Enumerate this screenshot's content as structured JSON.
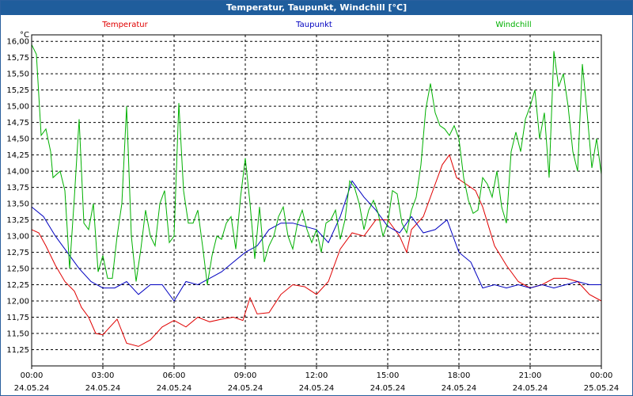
{
  "window": {
    "title": "Temperatur, Taupunkt, Windchill [°C]"
  },
  "chart_data": {
    "type": "line",
    "title": "Temperatur, Taupunkt, Windchill [°C]",
    "yunit": "°C",
    "ylim": [
      11.0,
      16.1
    ],
    "yticks": [
      "16,00",
      "15,75",
      "15,50",
      "15,25",
      "15,00",
      "14,75",
      "14,50",
      "14,25",
      "14,00",
      "13,75",
      "13,50",
      "13,25",
      "13,00",
      "12,75",
      "12,50",
      "12,25",
      "12,00",
      "11,75",
      "11,50",
      "11,25"
    ],
    "xlim": [
      0,
      24
    ],
    "xticks": [
      {
        "time": "00:00",
        "date": "24.05.24"
      },
      {
        "time": "03:00",
        "date": "24.05.24"
      },
      {
        "time": "06:00",
        "date": "24.05.24"
      },
      {
        "time": "09:00",
        "date": "24.05.24"
      },
      {
        "time": "12:00",
        "date": "24.05.24"
      },
      {
        "time": "15:00",
        "date": "24.05.24"
      },
      {
        "time": "18:00",
        "date": "24.05.24"
      },
      {
        "time": "21:00",
        "date": "24.05.24"
      },
      {
        "time": "00:00",
        "date": "25.05.24"
      }
    ],
    "grid": true,
    "colors": {
      "temperature": "#e00000",
      "dewpoint": "#0000c0",
      "windchill": "#00b000",
      "axis": "#000000",
      "title_bg": "#1f5d9c"
    },
    "series": [
      {
        "name": "Temperatur",
        "key": "temperature",
        "points": [
          [
            0,
            13.1
          ],
          [
            0.3,
            13.05
          ],
          [
            0.6,
            12.85
          ],
          [
            1.0,
            12.55
          ],
          [
            1.4,
            12.3
          ],
          [
            1.8,
            12.15
          ],
          [
            2.1,
            11.9
          ],
          [
            2.4,
            11.75
          ],
          [
            2.7,
            11.5
          ],
          [
            3.0,
            11.48
          ],
          [
            3.3,
            11.6
          ],
          [
            3.6,
            11.72
          ],
          [
            4.0,
            11.35
          ],
          [
            4.5,
            11.3
          ],
          [
            5.0,
            11.4
          ],
          [
            5.5,
            11.6
          ],
          [
            6.0,
            11.7
          ],
          [
            6.5,
            11.6
          ],
          [
            7.0,
            11.75
          ],
          [
            7.5,
            11.68
          ],
          [
            8.0,
            11.72
          ],
          [
            8.5,
            11.75
          ],
          [
            8.9,
            11.7
          ],
          [
            9.2,
            12.05
          ],
          [
            9.5,
            11.8
          ],
          [
            10.0,
            11.82
          ],
          [
            10.5,
            12.1
          ],
          [
            11.0,
            12.25
          ],
          [
            11.5,
            12.22
          ],
          [
            12.0,
            12.1
          ],
          [
            12.5,
            12.3
          ],
          [
            13.0,
            12.8
          ],
          [
            13.5,
            13.05
          ],
          [
            14.0,
            13.0
          ],
          [
            14.5,
            13.25
          ],
          [
            15.0,
            13.25
          ],
          [
            15.5,
            13.0
          ],
          [
            15.8,
            12.75
          ],
          [
            16.0,
            13.1
          ],
          [
            16.5,
            13.3
          ],
          [
            17.0,
            13.8
          ],
          [
            17.3,
            14.1
          ],
          [
            17.6,
            14.25
          ],
          [
            17.9,
            13.9
          ],
          [
            18.3,
            13.8
          ],
          [
            18.7,
            13.7
          ],
          [
            19.0,
            13.45
          ],
          [
            19.5,
            12.85
          ],
          [
            20.0,
            12.55
          ],
          [
            20.5,
            12.3
          ],
          [
            21.0,
            12.2
          ],
          [
            21.5,
            12.25
          ],
          [
            22.0,
            12.35
          ],
          [
            22.5,
            12.35
          ],
          [
            23.0,
            12.3
          ],
          [
            23.5,
            12.1
          ],
          [
            24.0,
            12.0
          ]
        ]
      },
      {
        "name": "Taupunkt",
        "key": "dewpoint",
        "points": [
          [
            0,
            13.45
          ],
          [
            0.5,
            13.3
          ],
          [
            1.0,
            13.0
          ],
          [
            1.5,
            12.75
          ],
          [
            2.0,
            12.5
          ],
          [
            2.5,
            12.3
          ],
          [
            3.0,
            12.2
          ],
          [
            3.5,
            12.2
          ],
          [
            4.0,
            12.3
          ],
          [
            4.5,
            12.1
          ],
          [
            5.0,
            12.25
          ],
          [
            5.5,
            12.25
          ],
          [
            6.0,
            12.0
          ],
          [
            6.5,
            12.3
          ],
          [
            7.0,
            12.25
          ],
          [
            7.5,
            12.35
          ],
          [
            8.0,
            12.45
          ],
          [
            8.5,
            12.6
          ],
          [
            9.0,
            12.75
          ],
          [
            9.5,
            12.85
          ],
          [
            10.0,
            13.1
          ],
          [
            10.5,
            13.2
          ],
          [
            11.0,
            13.2
          ],
          [
            11.5,
            13.15
          ],
          [
            12.0,
            13.1
          ],
          [
            12.5,
            12.9
          ],
          [
            13.0,
            13.3
          ],
          [
            13.5,
            13.85
          ],
          [
            14.0,
            13.6
          ],
          [
            14.5,
            13.4
          ],
          [
            15.0,
            13.15
          ],
          [
            15.5,
            13.05
          ],
          [
            16.0,
            13.3
          ],
          [
            16.5,
            13.05
          ],
          [
            17.0,
            13.1
          ],
          [
            17.5,
            13.25
          ],
          [
            18.0,
            12.75
          ],
          [
            18.5,
            12.6
          ],
          [
            19.0,
            12.2
          ],
          [
            19.5,
            12.25
          ],
          [
            20.0,
            12.2
          ],
          [
            20.5,
            12.25
          ],
          [
            21.0,
            12.2
          ],
          [
            21.5,
            12.25
          ],
          [
            22.0,
            12.2
          ],
          [
            22.5,
            12.25
          ],
          [
            23.0,
            12.3
          ],
          [
            23.5,
            12.25
          ],
          [
            24.0,
            12.25
          ]
        ]
      },
      {
        "name": "Windchill",
        "key": "windchill",
        "points": [
          [
            0,
            15.95
          ],
          [
            0.2,
            15.8
          ],
          [
            0.4,
            14.55
          ],
          [
            0.6,
            14.65
          ],
          [
            0.8,
            14.3
          ],
          [
            0.9,
            13.9
          ],
          [
            1.2,
            14.0
          ],
          [
            1.4,
            13.7
          ],
          [
            1.6,
            12.5
          ],
          [
            1.8,
            13.6
          ],
          [
            2.0,
            14.8
          ],
          [
            2.2,
            13.2
          ],
          [
            2.4,
            13.1
          ],
          [
            2.6,
            13.5
          ],
          [
            2.8,
            12.45
          ],
          [
            3.0,
            12.7
          ],
          [
            3.2,
            12.35
          ],
          [
            3.4,
            12.35
          ],
          [
            3.6,
            13.0
          ],
          [
            3.8,
            13.5
          ],
          [
            4.0,
            15.0
          ],
          [
            4.2,
            13.0
          ],
          [
            4.4,
            12.3
          ],
          [
            4.6,
            12.8
          ],
          [
            4.8,
            13.4
          ],
          [
            5.0,
            13.0
          ],
          [
            5.2,
            12.85
          ],
          [
            5.4,
            13.5
          ],
          [
            5.6,
            13.7
          ],
          [
            5.8,
            12.9
          ],
          [
            6.0,
            13.0
          ],
          [
            6.2,
            15.05
          ],
          [
            6.4,
            13.7
          ],
          [
            6.6,
            13.2
          ],
          [
            6.8,
            13.2
          ],
          [
            7.0,
            13.4
          ],
          [
            7.2,
            12.85
          ],
          [
            7.4,
            12.25
          ],
          [
            7.6,
            12.7
          ],
          [
            7.8,
            13.0
          ],
          [
            8.0,
            12.95
          ],
          [
            8.2,
            13.2
          ],
          [
            8.4,
            13.3
          ],
          [
            8.6,
            12.8
          ],
          [
            8.8,
            13.6
          ],
          [
            9.0,
            14.2
          ],
          [
            9.2,
            13.5
          ],
          [
            9.4,
            12.65
          ],
          [
            9.6,
            13.45
          ],
          [
            9.8,
            12.6
          ],
          [
            10.0,
            12.85
          ],
          [
            10.2,
            13.0
          ],
          [
            10.4,
            13.3
          ],
          [
            10.6,
            13.45
          ],
          [
            10.8,
            13.0
          ],
          [
            11.0,
            12.8
          ],
          [
            11.2,
            13.2
          ],
          [
            11.4,
            13.4
          ],
          [
            11.6,
            13.1
          ],
          [
            11.8,
            12.9
          ],
          [
            12.0,
            13.1
          ],
          [
            12.2,
            12.75
          ],
          [
            12.4,
            13.2
          ],
          [
            12.6,
            13.25
          ],
          [
            12.8,
            13.4
          ],
          [
            13.0,
            12.95
          ],
          [
            13.2,
            13.25
          ],
          [
            13.4,
            13.85
          ],
          [
            13.6,
            13.75
          ],
          [
            13.8,
            13.5
          ],
          [
            14.0,
            13.1
          ],
          [
            14.2,
            13.4
          ],
          [
            14.4,
            13.55
          ],
          [
            14.6,
            13.35
          ],
          [
            14.8,
            13.0
          ],
          [
            15.0,
            13.2
          ],
          [
            15.2,
            13.7
          ],
          [
            15.4,
            13.65
          ],
          [
            15.6,
            13.2
          ],
          [
            15.8,
            13.05
          ],
          [
            16.0,
            13.4
          ],
          [
            16.2,
            13.6
          ],
          [
            16.4,
            14.1
          ],
          [
            16.6,
            14.95
          ],
          [
            16.8,
            15.35
          ],
          [
            17.0,
            14.9
          ],
          [
            17.2,
            14.7
          ],
          [
            17.4,
            14.65
          ],
          [
            17.6,
            14.55
          ],
          [
            17.8,
            14.7
          ],
          [
            18.0,
            14.5
          ],
          [
            18.2,
            13.9
          ],
          [
            18.4,
            13.55
          ],
          [
            18.6,
            13.35
          ],
          [
            18.8,
            13.4
          ],
          [
            19.0,
            13.9
          ],
          [
            19.2,
            13.8
          ],
          [
            19.4,
            13.6
          ],
          [
            19.6,
            14.0
          ],
          [
            19.8,
            13.45
          ],
          [
            20.0,
            13.2
          ],
          [
            20.2,
            14.3
          ],
          [
            20.4,
            14.6
          ],
          [
            20.6,
            14.3
          ],
          [
            20.8,
            14.8
          ],
          [
            21.0,
            15.0
          ],
          [
            21.2,
            15.25
          ],
          [
            21.4,
            14.5
          ],
          [
            21.6,
            14.9
          ],
          [
            21.8,
            13.9
          ],
          [
            22.0,
            15.85
          ],
          [
            22.2,
            15.3
          ],
          [
            22.4,
            15.5
          ],
          [
            22.6,
            15.0
          ],
          [
            22.8,
            14.3
          ],
          [
            23.0,
            14.0
          ],
          [
            23.2,
            15.65
          ],
          [
            23.4,
            14.9
          ],
          [
            23.6,
            14.05
          ],
          [
            23.8,
            14.5
          ],
          [
            24.0,
            13.95
          ]
        ]
      }
    ]
  }
}
